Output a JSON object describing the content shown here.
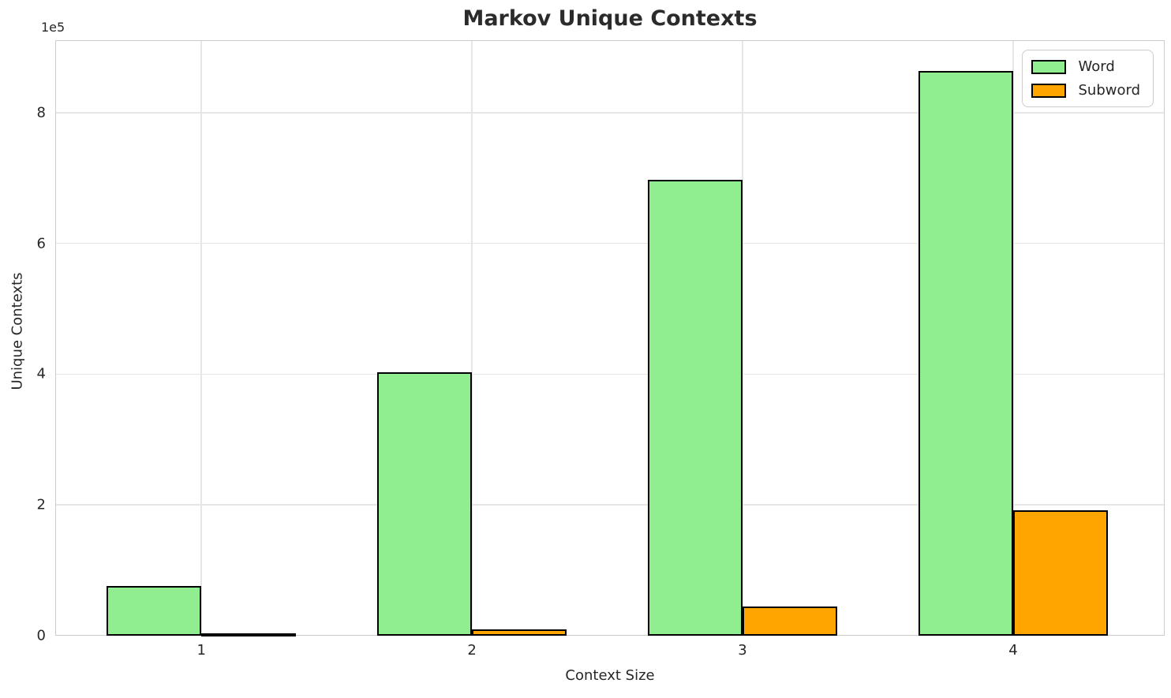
{
  "chart_data": {
    "type": "bar",
    "title": "Markov Unique Contexts",
    "xlabel": "Context Size",
    "ylabel": "Unique Contexts",
    "y_offset_label": "1e5",
    "categories": [
      "1",
      "2",
      "3",
      "4"
    ],
    "x_positions": [
      1,
      2,
      3,
      4
    ],
    "series": [
      {
        "name": "Word",
        "color": "#90EE90",
        "values": [
          76000,
          403000,
          697000,
          864000
        ]
      },
      {
        "name": "Subword",
        "color": "#FFA500",
        "values": [
          2500,
          9700,
          44600,
          192000
        ]
      }
    ],
    "bar_width": 0.35,
    "bar_edge_color": "#000000",
    "xlim": [
      0.46,
      4.56
    ],
    "ylim": [
      0,
      911000
    ],
    "yticks": [
      0,
      200000,
      400000,
      600000,
      800000
    ],
    "ytick_labels": [
      "0",
      "2",
      "4",
      "6",
      "8"
    ],
    "grid": true,
    "legend": {
      "position": "upper right",
      "entries": [
        "Word",
        "Subword"
      ]
    },
    "colors": {
      "grid": "#e6e6e6",
      "spine": "#cccccc",
      "text": "#262626",
      "background": "#ffffff"
    }
  }
}
